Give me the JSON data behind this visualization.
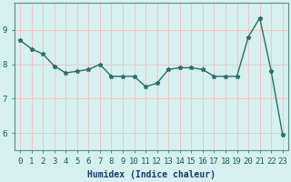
{
  "x": [
    0,
    1,
    2,
    3,
    4,
    5,
    6,
    7,
    8,
    9,
    10,
    11,
    12,
    13,
    14,
    15,
    16,
    17,
    18,
    19,
    20,
    21,
    22,
    23
  ],
  "y": [
    8.7,
    8.45,
    8.3,
    7.95,
    7.75,
    7.8,
    7.85,
    8.0,
    7.65,
    7.65,
    7.65,
    7.35,
    7.45,
    7.85,
    7.9,
    7.9,
    7.85,
    7.65,
    7.65,
    7.65,
    8.8,
    9.35,
    7.8,
    5.95
  ],
  "line_color": "#2e6e63",
  "marker": "*",
  "marker_size": 3.5,
  "bg_color": "#d5f0ee",
  "grid_color": "#e8c8c8",
  "xlabel": "Humidex (Indice chaleur)",
  "ylim": [
    5.5,
    9.8
  ],
  "xlim": [
    -0.5,
    23.5
  ],
  "yticks": [
    6,
    7,
    8,
    9
  ],
  "xtick_labels": [
    "0",
    "1",
    "2",
    "3",
    "4",
    "5",
    "6",
    "7",
    "8",
    "9",
    "10",
    "11",
    "12",
    "13",
    "14",
    "15",
    "16",
    "17",
    "18",
    "19",
    "20",
    "21",
    "22",
    "23"
  ],
  "xlabel_fontsize": 7,
  "tick_fontsize": 6.5,
  "tick_color": "#1a5c55",
  "xlabel_color": "#1a3a6e",
  "spine_color": "#5a8a85",
  "linewidth": 1.0
}
